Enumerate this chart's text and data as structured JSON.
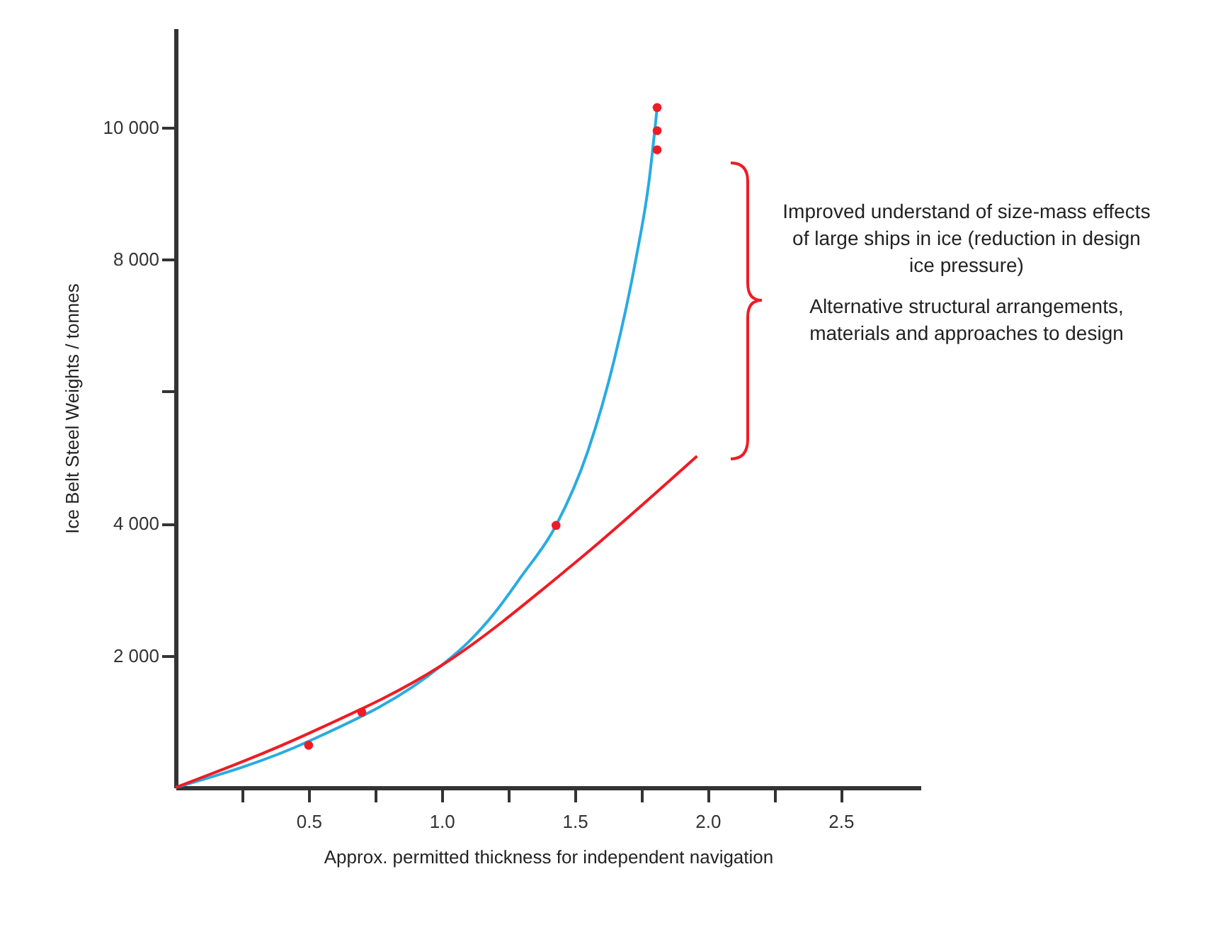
{
  "chart_data": {
    "type": "line",
    "xlabel": "Approx. permitted  thickness for independent navigation",
    "ylabel": "Ice Belt Steel Weights / tonnes",
    "xlim": [
      0,
      2.8
    ],
    "ylim": [
      0,
      11500
    ],
    "xticks": [
      {
        "value": 0.25,
        "label": null
      },
      0.5,
      {
        "value": 0.75,
        "label": null
      },
      {
        "value": 1,
        "label": "1.0"
      },
      {
        "value": 1.25,
        "label": null
      },
      1.5,
      {
        "value": 1.75,
        "label": null
      },
      {
        "value": 2,
        "label": "2.0"
      },
      {
        "value": 2.25,
        "label": null
      },
      2.5
    ],
    "yticks": [
      {
        "value": 2000,
        "label": "2 000"
      },
      {
        "value": 4000,
        "label": "4 000"
      },
      {
        "value": 6000,
        "label": null
      },
      {
        "value": 8000,
        "label": "8 000"
      },
      {
        "value": 10000,
        "label": "10 000"
      }
    ],
    "grid": false,
    "series": [
      {
        "color": "#29abe2",
        "x": [
          0,
          0.5,
          1.0,
          1.1,
          1.2,
          1.3,
          1.43,
          1.55,
          1.65,
          1.73,
          1.78,
          1.81
        ],
        "values": [
          0,
          700,
          1850,
          2200,
          2650,
          3200,
          3970,
          5100,
          6500,
          8000,
          9200,
          10300
        ]
      },
      {
        "color": "#ee1c25",
        "x": [
          0,
          0.5,
          1.0,
          1.5,
          1.96
        ],
        "values": [
          0,
          820,
          1850,
          3400,
          5020
        ]
      },
      {
        "type": "scatter",
        "marker": "circle",
        "color": "#ee1c25",
        "x": [
          0.5,
          0.7,
          1.43,
          1.81,
          1.81,
          1.81
        ],
        "values": [
          640,
          1140,
          3970,
          10300,
          9950,
          9660
        ]
      }
    ],
    "annotations": [
      "Improved understand of size-mass effects of large ships in ice (reduction in design ice pressure)",
      "Alternative structural arrangements, materials and approaches to design"
    ]
  }
}
